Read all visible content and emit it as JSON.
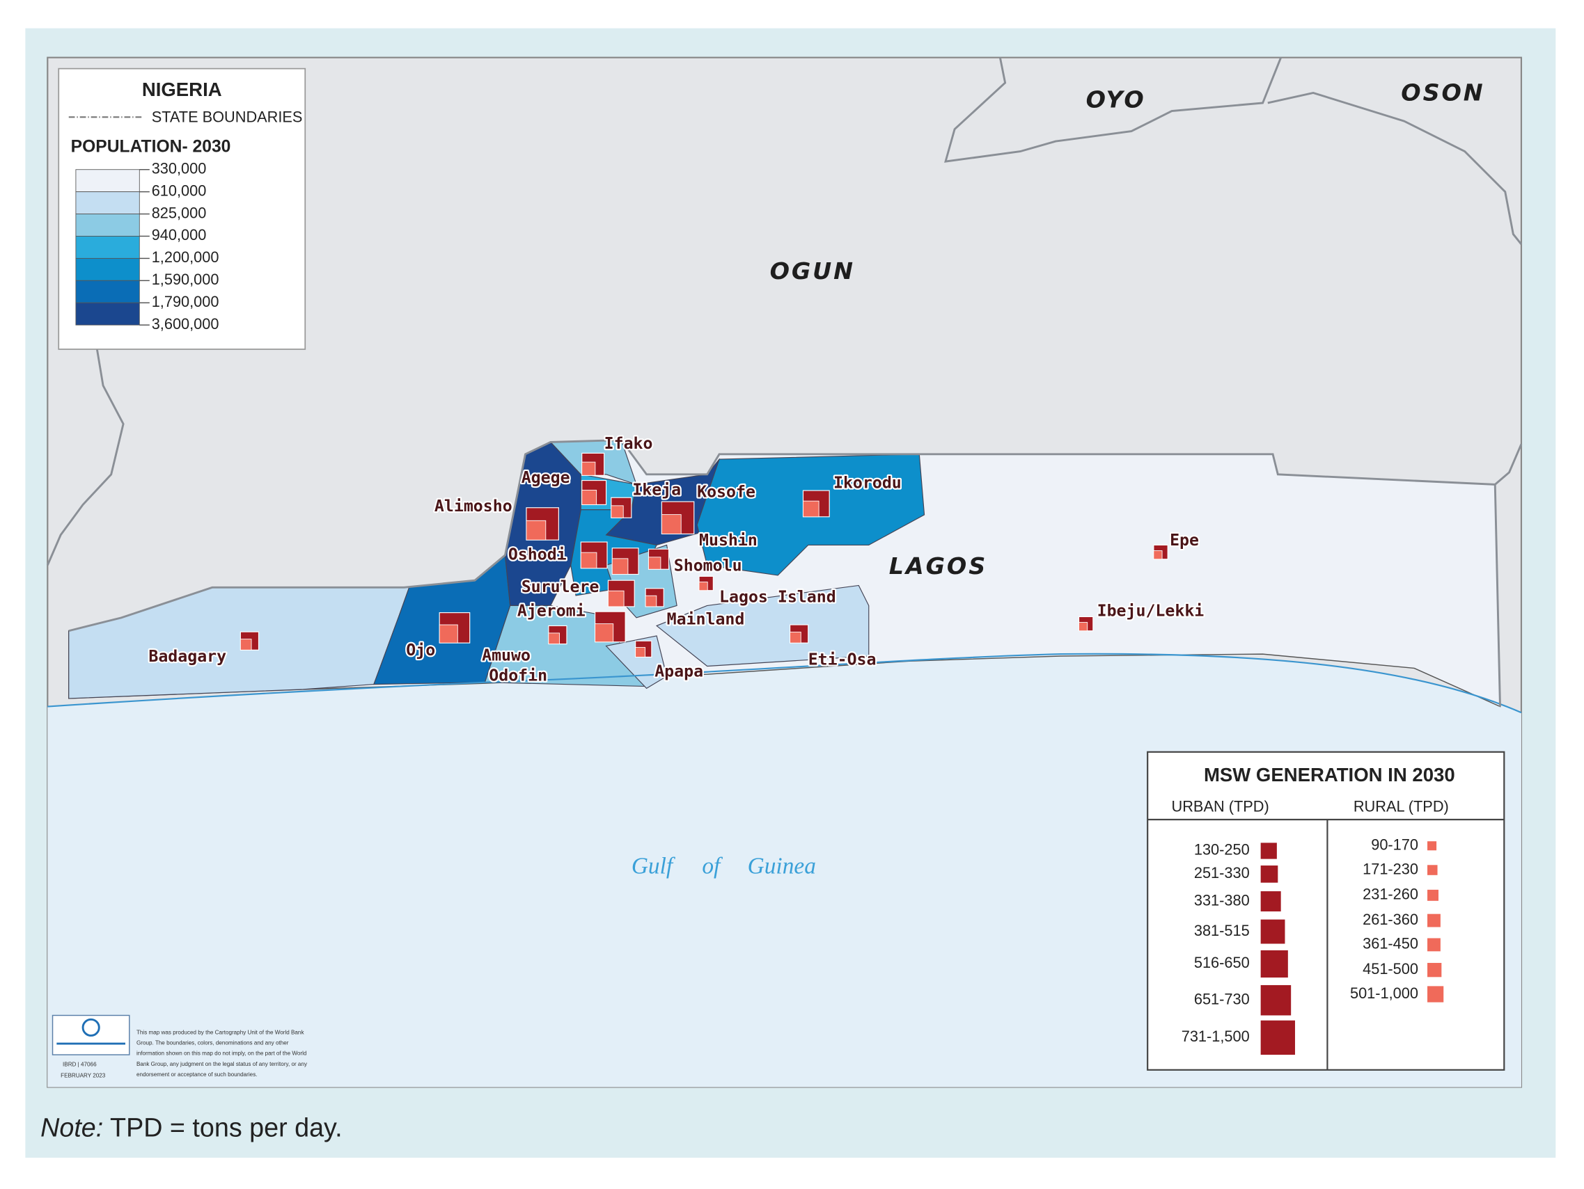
{
  "map": {
    "states": [
      "OYO",
      "OSON",
      "OGUN",
      "LAGOS"
    ],
    "water": [
      "Gulf",
      "of",
      "Guinea"
    ],
    "lga_labels": [
      "Ifako",
      "Agege",
      "Alimosho",
      "Ikeja",
      "Kosofe",
      "Ikorodu",
      "Mushin",
      "Oshodi",
      "Shomolu",
      "Surulere",
      "Lagos Island",
      "Ajeromi",
      "Mainland",
      "Badagary",
      "Ojo",
      "Amuwo",
      "Odofin",
      "Apapa",
      "Eti-Osa",
      "Epe",
      "Ibeju/Lekki"
    ]
  },
  "population_legend": {
    "title": "NIGERIA",
    "boundary_label": "STATE BOUNDARIES",
    "subtitle": "POPULATION- 2030",
    "breaks": [
      "330,000",
      "610,000",
      "825,000",
      "940,000",
      "1,200,000",
      "1,590,000",
      "1,790,000",
      "3,600,000"
    ],
    "colors": [
      "#eef2f8",
      "#c4def2",
      "#8ccbe4",
      "#2aacdc",
      "#0d8fcb",
      "#0a6db6",
      "#1b478f"
    ]
  },
  "msw_legend": {
    "title": "MSW GENERATION IN 2030",
    "urban_header": "URBAN (TPD)",
    "rural_header": "RURAL (TPD)",
    "urban": [
      "130-250",
      "251-330",
      "331-380",
      "381-515",
      "516-650",
      "651-730",
      "731-1,500"
    ],
    "rural": [
      "90-170",
      "171-230",
      "231-260",
      "261-360",
      "361-450",
      "451-500",
      "501-1,000"
    ],
    "urban_color": "#a31a22",
    "rural_color": "#f06a5a"
  },
  "credit": {
    "lines": [
      "This map was produced by the Cartography Unit of the World Bank",
      "Group. The boundaries, colors, denominations and any other",
      "information shown on this map do not imply, on the part of the World",
      "Bank Group, any judgment on the legal status of any territory, or any",
      "endorsement or acceptance of such boundaries."
    ],
    "id": "IBRD | 47066",
    "date": "FEBRUARY 2023"
  },
  "note": {
    "prefix": "Note:",
    "text": " TPD = tons per day."
  }
}
